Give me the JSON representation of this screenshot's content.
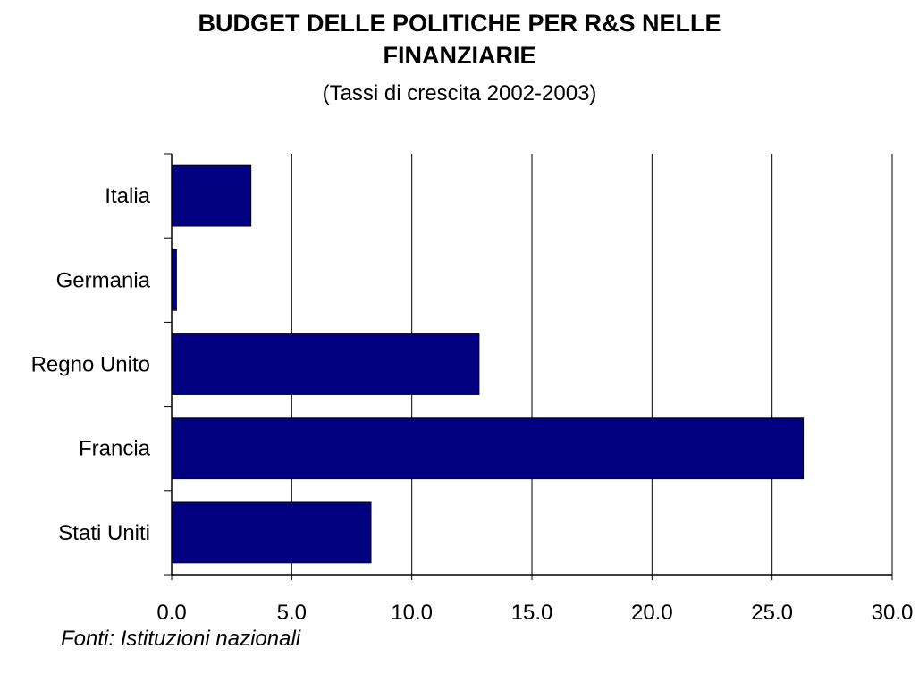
{
  "chart_data": {
    "type": "bar",
    "orientation": "horizontal",
    "title_lines": [
      "BUDGET DELLE POLITICHE PER R&S NELLE",
      "FINANZIARIE"
    ],
    "subtitle": "(Tassi di crescita 2002-2003)",
    "categories": [
      "Italia",
      "Germania",
      "Regno Unito",
      "Francia",
      "Stati Uniti"
    ],
    "values": [
      3.3,
      0.2,
      12.8,
      26.3,
      8.3
    ],
    "xlim": [
      0,
      30
    ],
    "xticks": [
      "0.0",
      "5.0",
      "10.0",
      "15.0",
      "20.0",
      "25.0",
      "30.0"
    ],
    "grid": true,
    "bar_color": "#000080",
    "source": "Fonti: Istituzioni nazionali"
  }
}
